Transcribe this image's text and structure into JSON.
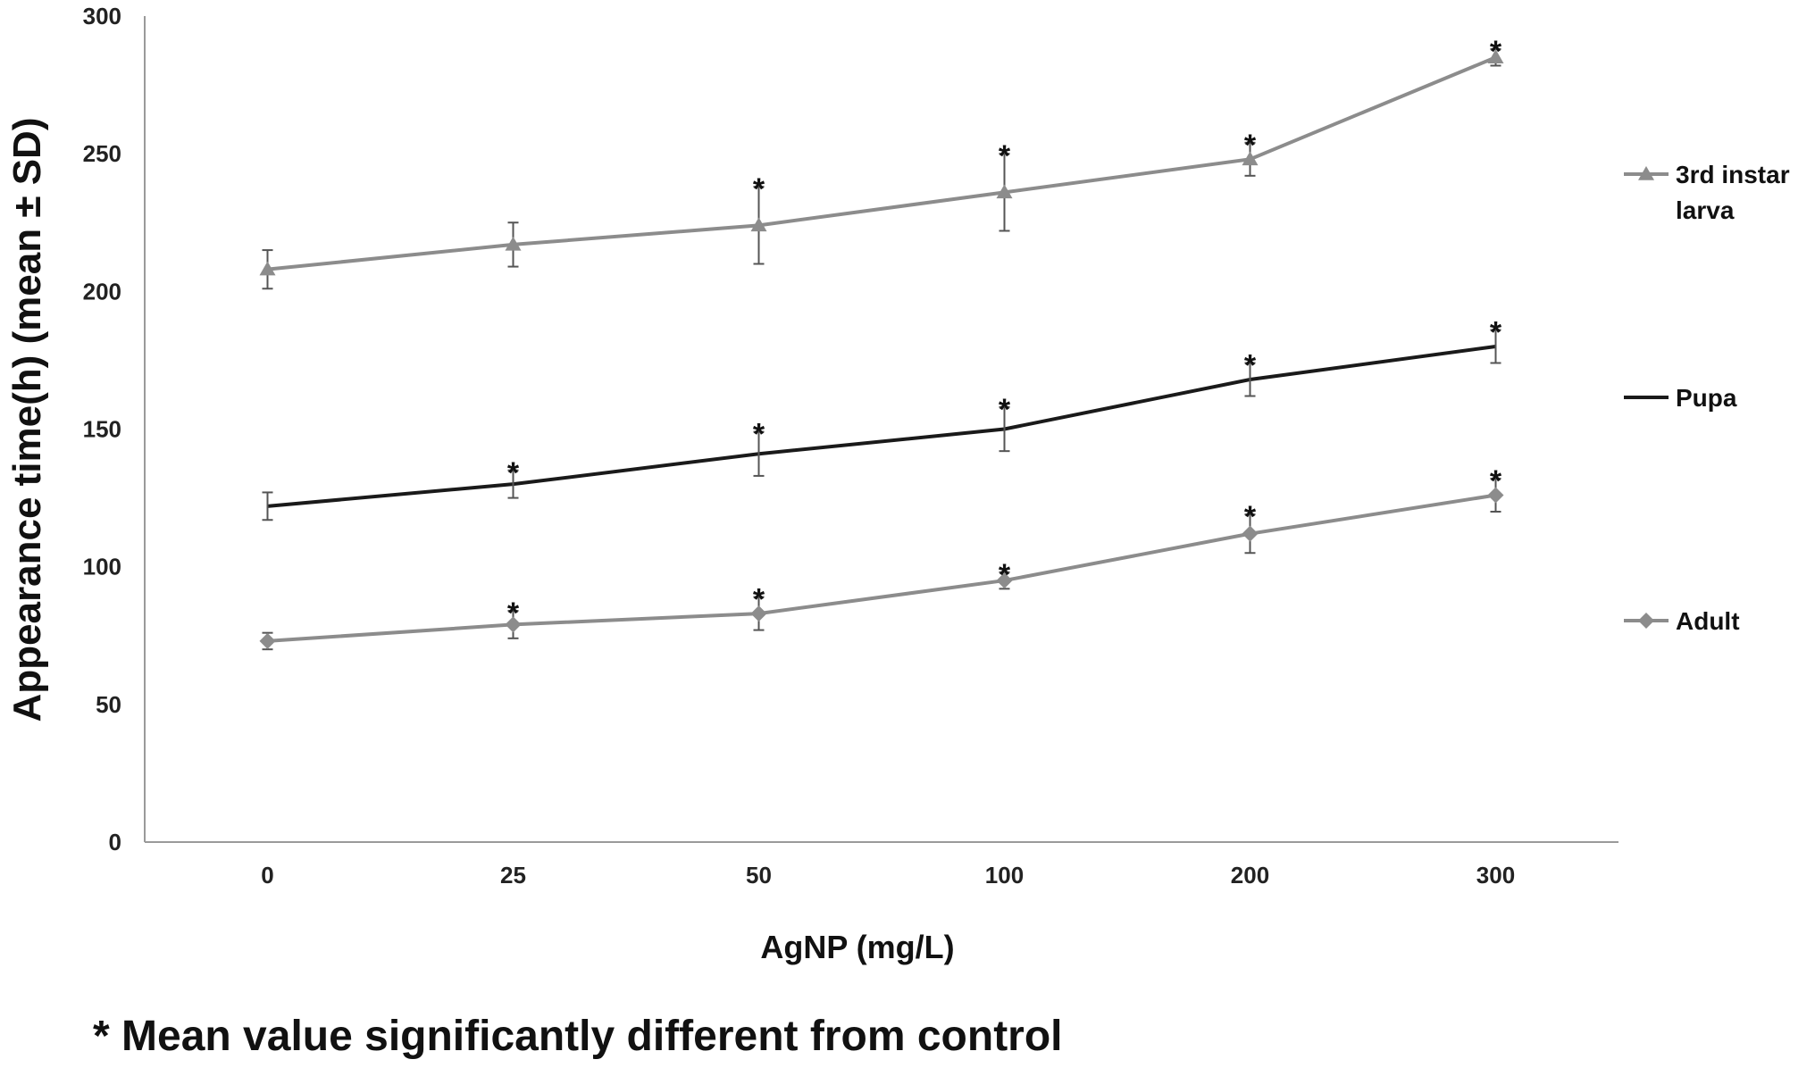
{
  "chart_data": {
    "type": "line",
    "xlabel": "AgNP (mg/L)",
    "ylabel": "Appearance time(h)  (mean ± SD)",
    "categories": [
      "0",
      "25",
      "50",
      "100",
      "200",
      "300"
    ],
    "ylim": [
      0,
      300
    ],
    "yticks": [
      "0",
      "50",
      "100",
      "150",
      "200",
      "250",
      "300"
    ],
    "grid": false,
    "legend_position": "right",
    "series": [
      {
        "name": "3rd instar larva",
        "color": "#8c8c8c",
        "marker": "triangle",
        "values": [
          208,
          217,
          224,
          236,
          248,
          285
        ],
        "errors": [
          7,
          8,
          14,
          14,
          6,
          3
        ],
        "significant": [
          false,
          false,
          true,
          true,
          true,
          true
        ]
      },
      {
        "name": "Pupa",
        "color": "#1a1a1a",
        "marker": "none",
        "values": [
          122,
          130,
          141,
          150,
          168,
          180
        ],
        "errors": [
          5,
          5,
          8,
          8,
          6,
          6
        ],
        "significant": [
          false,
          true,
          true,
          true,
          true,
          true
        ]
      },
      {
        "name": "Adult",
        "color": "#8c8c8c",
        "marker": "diamond",
        "values": [
          73,
          79,
          83,
          95,
          112,
          126
        ],
        "errors": [
          3,
          5,
          6,
          3,
          7,
          6
        ],
        "significant": [
          false,
          true,
          true,
          true,
          true,
          true
        ]
      }
    ],
    "annotation_mark": "*",
    "footnote": "* Mean value significantly different from control"
  }
}
